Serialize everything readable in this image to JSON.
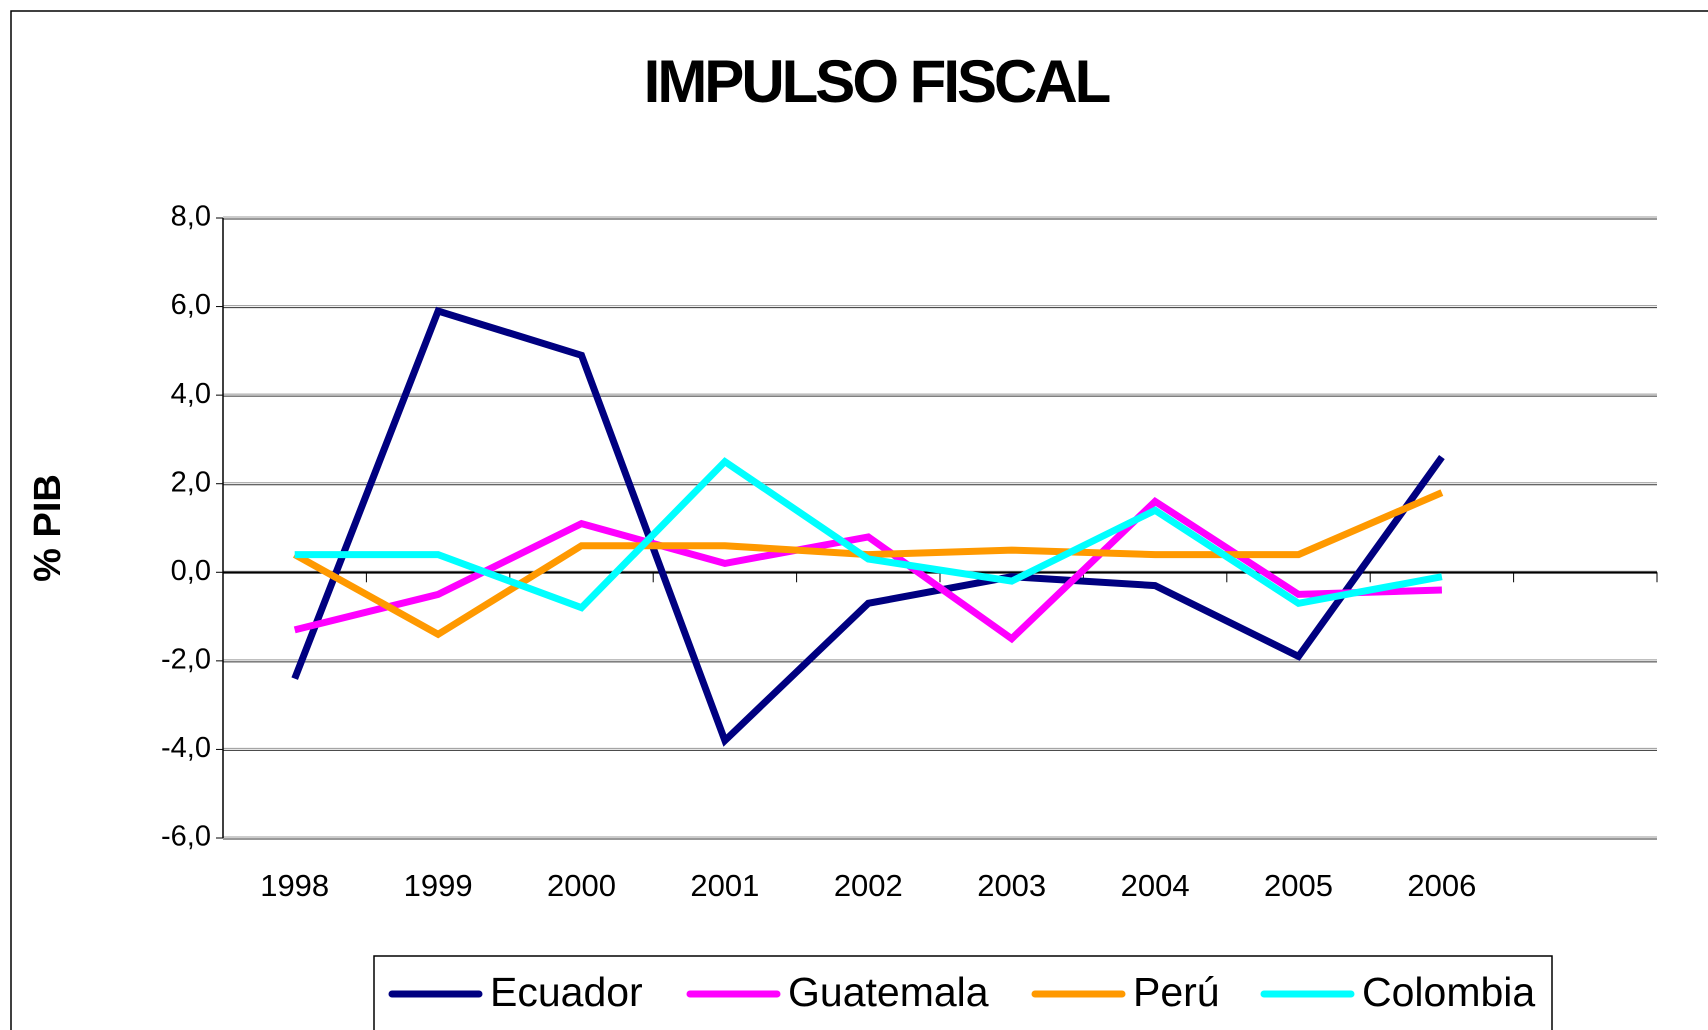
{
  "chart_data": {
    "type": "line",
    "title": "IMPULSO FISCAL",
    "y_label": "% PIB",
    "categories": [
      "1998",
      "1999",
      "2000",
      "2001",
      "2002",
      "2003",
      "2004",
      "2005",
      "2006",
      null
    ],
    "series": [
      {
        "name": "Ecuador",
        "color": "#000080",
        "values": [
          -2.4,
          5.9,
          4.9,
          -3.8,
          -0.7,
          -0.1,
          -0.3,
          -1.9,
          2.6,
          null
        ]
      },
      {
        "name": "Guatemala",
        "color": "#ff00ff",
        "values": [
          -1.3,
          -0.5,
          1.1,
          0.2,
          0.8,
          -1.5,
          1.6,
          -0.5,
          -0.4,
          null
        ]
      },
      {
        "name": "Perú",
        "color": "#ff9900",
        "values": [
          0.4,
          -1.4,
          0.6,
          0.6,
          0.4,
          0.5,
          0.4,
          0.4,
          1.8,
          null
        ]
      },
      {
        "name": "Colombia",
        "color": "#00ffff",
        "values": [
          0.4,
          0.4,
          -0.8,
          2.5,
          0.3,
          -0.2,
          1.4,
          -0.7,
          -0.1,
          null
        ]
      }
    ],
    "ylim": [
      -6,
      8
    ],
    "yticks": [
      {
        "value": -6,
        "label": "-6,0"
      },
      {
        "value": -4,
        "label": "-4,0"
      },
      {
        "value": -2,
        "label": "-2,0"
      },
      {
        "value": 0,
        "label": "0,0"
      },
      {
        "value": 2,
        "label": "2,0"
      },
      {
        "value": 4,
        "label": "4,0"
      },
      {
        "value": 6,
        "label": "6,0"
      },
      {
        "value": 8,
        "label": "8,0"
      }
    ],
    "grid": true,
    "legend": "bottom"
  }
}
